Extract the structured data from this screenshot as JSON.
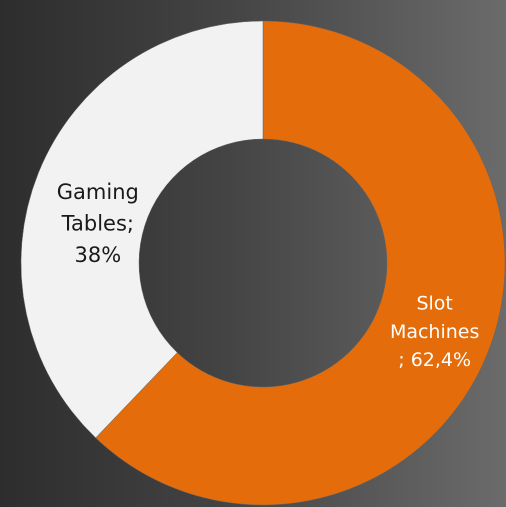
{
  "chart_data": {
    "type": "donut",
    "categories": [
      "Slot Machines",
      "Gaming Tables;"
    ],
    "values": [
      62.4,
      38
    ],
    "value_labels": [
      "; 62,4%",
      "38%"
    ],
    "colors": [
      "#e46c0a",
      "#f2f2f2"
    ],
    "label_colors": [
      "#ffffff",
      "#1a1a1a"
    ]
  }
}
